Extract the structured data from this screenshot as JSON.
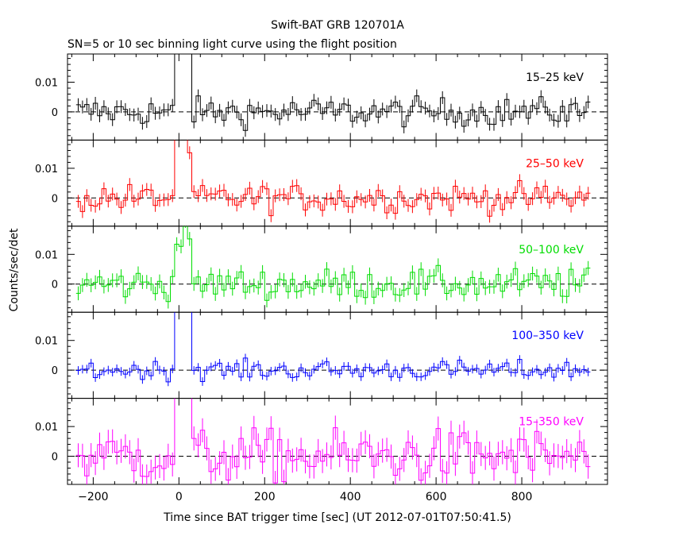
{
  "title": "Swift-BAT GRB 120701A",
  "subtitle": "SN=5 or 10 sec binning light curve using the flight position",
  "ylabel": "Counts/sec/det",
  "xlabel": "Time since BAT trigger time [sec] (UT 2012-07-01T07:50:41.5)",
  "chart_data": {
    "type": "line",
    "xlim": [
      -260,
      1000
    ],
    "x_ticks": [
      -200,
      0,
      200,
      400,
      600,
      800
    ],
    "x_tick_labels": [
      "−200",
      "0",
      "200",
      "400",
      "600",
      "800"
    ],
    "ylim": [
      -0.0095,
      0.0195
    ],
    "y_ticks": [
      0,
      0.01
    ],
    "y_tick_labels": [
      "0",
      "0.01"
    ],
    "bin_width_sec": 10,
    "burst_window_sec": [
      -10,
      25
    ],
    "panels": [
      {
        "name": "15–25 keV",
        "color": "#000000"
      },
      {
        "name": "25–50 keV",
        "color": "#ff0000"
      },
      {
        "name": "50–100 keV",
        "color": "#00dd00"
      },
      {
        "name": "100–350 keV",
        "color": "#0000ff"
      },
      {
        "name": "15–350 keV",
        "color": "#ff00ff"
      }
    ]
  }
}
